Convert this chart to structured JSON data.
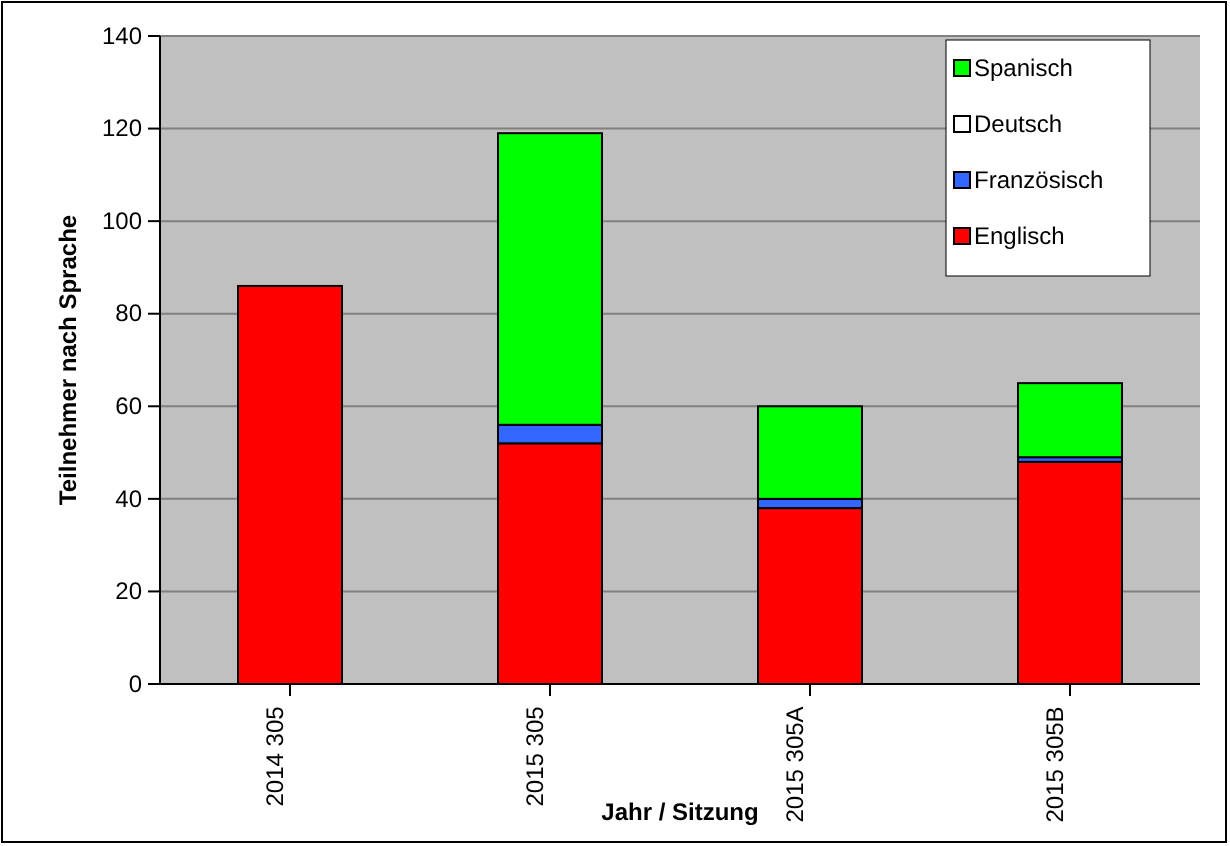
{
  "chart_data": {
    "type": "bar",
    "stacked": true,
    "xlabel": "Jahr / Sitzung",
    "ylabel": "Teilnehmer nach Sprache",
    "categories": [
      "2014 305",
      "2015 305",
      "2015 305A",
      "2015 305B"
    ],
    "series": [
      {
        "name": "Englisch",
        "color": "#ff0000",
        "values": [
          86,
          52,
          38,
          48
        ]
      },
      {
        "name": "Französisch",
        "color": "#3366ff",
        "values": [
          0,
          4,
          2,
          1
        ]
      },
      {
        "name": "Deutsch",
        "color": "#ffffff",
        "values": [
          0,
          0,
          0,
          0
        ]
      },
      {
        "name": "Spanisch",
        "color": "#00ff00",
        "values": [
          0,
          63,
          20,
          16
        ]
      }
    ],
    "ylim": [
      0,
      140
    ],
    "yticks": [
      0,
      20,
      40,
      60,
      80,
      100,
      120,
      140
    ],
    "grid": "y",
    "legend": "top right"
  }
}
